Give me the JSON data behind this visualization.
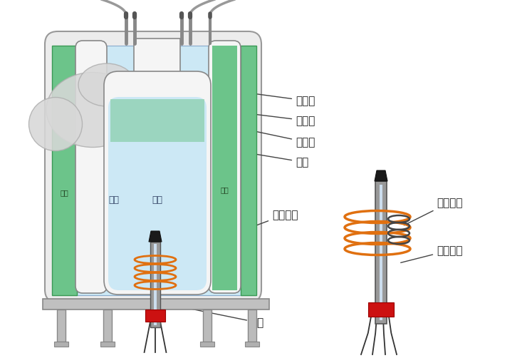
{
  "bg_color": "#ffffff",
  "lc": "#666666",
  "green_fill": "#6cc48a",
  "blue_fill": "#cce8f5",
  "gray_vessel": "#e8e8e8",
  "gray_med": "#aaaaaa",
  "gray_dark": "#777777",
  "orange_coil": "#e07010",
  "red_base": "#cc1111",
  "black_tip": "#1a1a1a",
  "ann_color": "#222222",
  "labels": {
    "zhenkongshi": "真空室",
    "yeqianguan1": "液氮罐",
    "yeqianguan2": "液氮罐",
    "tanka": "探孔",
    "licixianquan": "励磁线圈",
    "jiluXianquan": "记录线圈",
    "shepin_tanshou": "射频探头",
    "yangpin": "样品",
    "yedan_lbl": "液氮"
  },
  "ann_fontsize": 11
}
